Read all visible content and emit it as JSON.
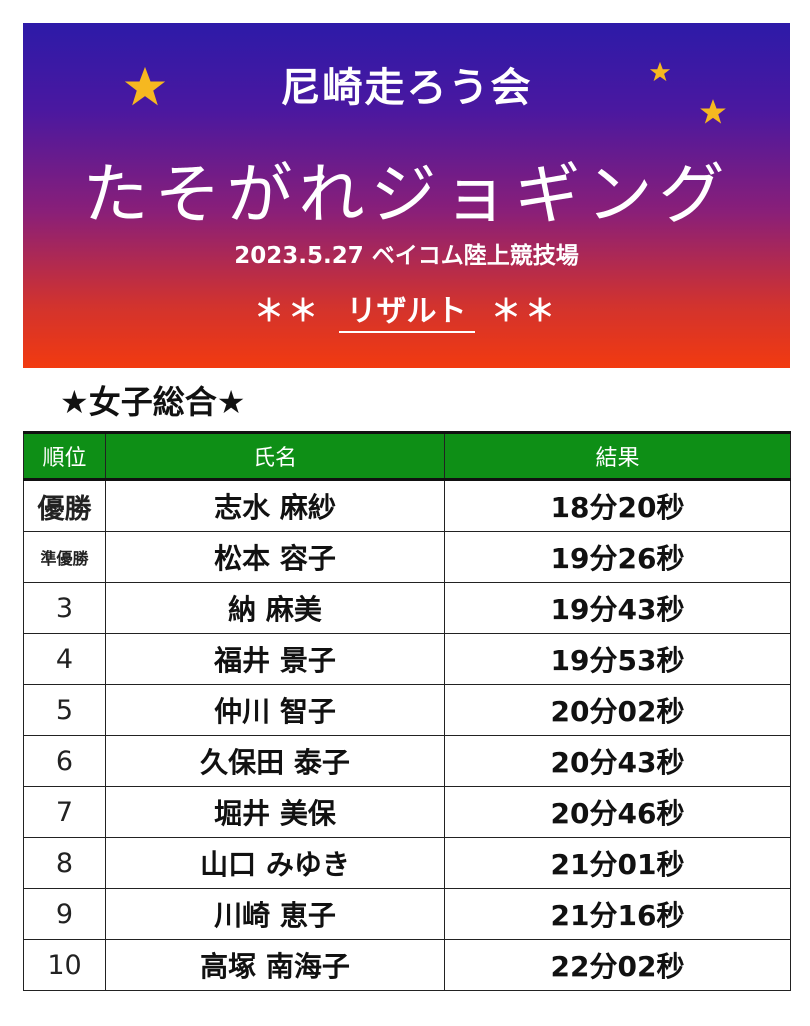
{
  "header": {
    "org": "尼崎走ろう会",
    "event": "たそがれジョギング",
    "date_venue": "2023.5.27 ベイコム陸上競技場",
    "result_prefix": "＊＊",
    "result_title": "リザルト",
    "result_suffix": "＊＊"
  },
  "colors": {
    "banner_top": "#2d1aa8",
    "banner_bottom": "#f23a10",
    "header_green": "#0e8f16",
    "star": "#f6b820"
  },
  "section_title": "★女子総合★",
  "table": {
    "headers": [
      "順位",
      "氏名",
      "結果"
    ],
    "rows": [
      {
        "rank": "優勝",
        "name": "志水 麻紗",
        "time": "18分20秒"
      },
      {
        "rank": "準優勝",
        "name": "松本 容子",
        "time": "19分26秒"
      },
      {
        "rank": "3",
        "name": "納 麻美",
        "time": "19分43秒"
      },
      {
        "rank": "4",
        "name": "福井 景子",
        "time": "19分53秒"
      },
      {
        "rank": "5",
        "name": "仲川 智子",
        "time": "20分02秒"
      },
      {
        "rank": "6",
        "name": "久保田 泰子",
        "time": "20分43秒"
      },
      {
        "rank": "7",
        "name": "堀井 美保",
        "time": "20分46秒"
      },
      {
        "rank": "8",
        "name": "山口 みゆき",
        "time": "21分01秒"
      },
      {
        "rank": "9",
        "name": "川崎 恵子",
        "time": "21分16秒"
      },
      {
        "rank": "10",
        "name": "高塚 南海子",
        "time": "22分02秒"
      }
    ]
  }
}
